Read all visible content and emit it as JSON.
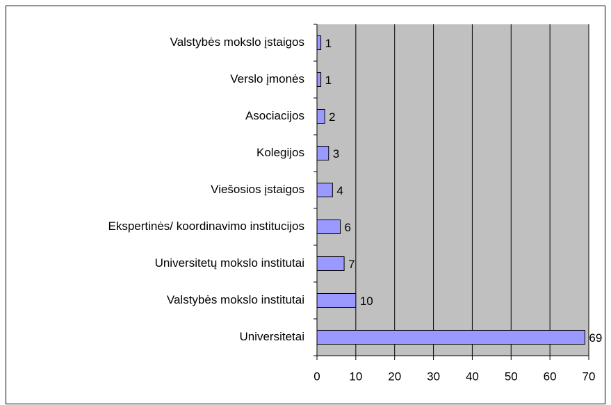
{
  "chart_data": {
    "type": "barh",
    "categories": [
      "Valstybės mokslo įstaigos",
      "Verslo įmonės",
      "Asociacijos",
      "Kolegijos",
      "Viešosios įstaigos",
      "Ekspertinės/ koordinavimo institucijos",
      "Universitetų mokslo institutai",
      "Valstybės mokslo institutai",
      "Universitetai"
    ],
    "values": [
      1,
      1,
      2,
      3,
      4,
      6,
      7,
      10,
      69
    ],
    "color": "#9999ff",
    "xlim": [
      0,
      70
    ],
    "xticks": [
      0,
      10,
      20,
      30,
      40,
      50,
      60,
      70
    ],
    "grid": true
  }
}
